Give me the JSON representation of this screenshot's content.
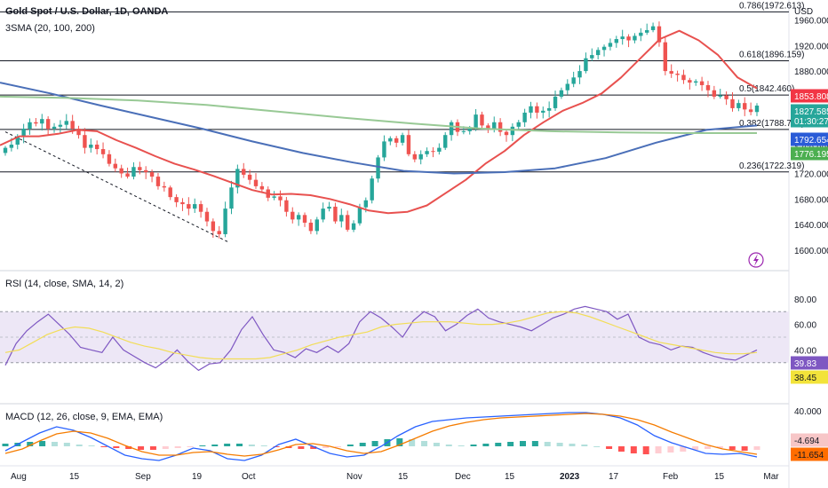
{
  "header": {
    "symbol_title": "Gold Spot / U.S. Dollar, 1D, OANDA",
    "sma_label": "3SMA (20, 100, 200)",
    "currency": "USD"
  },
  "colors": {
    "up": "#26a69a",
    "down": "#ef5350",
    "sma20": "#e8514f",
    "sma100": "#4a6fb8",
    "sma200": "#98c995",
    "rsi": "#7e57c2",
    "rsi_ma": "#f2dd57",
    "rsi_band": "#ede7f6",
    "macd": "#2962ff",
    "signal": "#f57c00",
    "fib": "#131722"
  },
  "chart_data": [
    {
      "type": "candlestick",
      "title": "Gold Spot / U.S. Dollar, 1D, OANDA",
      "ylim": [
        1575,
        1980
      ],
      "y_ticks": [
        1600,
        1640,
        1680,
        1720,
        1760,
        1800,
        1840,
        1880,
        1920,
        1960
      ],
      "y_tick_labels": [
        "1600.000",
        "1640.000",
        "1680.000",
        "1720.000",
        "1760.000",
        "1800.000",
        "1840.000",
        "1880.000",
        "1920.000",
        "1960.000"
      ],
      "x_tick_labels": [
        "Aug",
        "15",
        "Sep",
        "19",
        "Oct",
        "Nov",
        "15",
        "Dec",
        "15",
        "2023",
        "17",
        "Feb",
        "15",
        "Mar"
      ],
      "close_series": [
        1760,
        1765,
        1778,
        1790,
        1800,
        1798,
        1805,
        1790,
        1793,
        1796,
        1802,
        1790,
        1780,
        1760,
        1765,
        1758,
        1750,
        1735,
        1728,
        1720,
        1715,
        1730,
        1725,
        1722,
        1715,
        1700,
        1698,
        1683,
        1675,
        1672,
        1665,
        1672,
        1660,
        1645,
        1630,
        1625,
        1665,
        1698,
        1727,
        1718,
        1710,
        1700,
        1695,
        1682,
        1684,
        1678,
        1660,
        1648,
        1655,
        1643,
        1630,
        1648,
        1665,
        1668,
        1645,
        1655,
        1632,
        1642,
        1667,
        1678,
        1712,
        1745,
        1770,
        1775,
        1768,
        1780,
        1750,
        1742,
        1750,
        1755,
        1754,
        1760,
        1780,
        1800,
        1785,
        1786,
        1790,
        1812,
        1795,
        1790,
        1800,
        1785,
        1780,
        1793,
        1800,
        1815,
        1825,
        1815,
        1818,
        1822,
        1840,
        1850,
        1860,
        1870,
        1880,
        1900,
        1905,
        1913,
        1918,
        1924,
        1930,
        1934,
        1928,
        1935,
        1940,
        1944,
        1950,
        1925,
        1880,
        1876,
        1874,
        1866,
        1862,
        1864,
        1858,
        1850,
        1840,
        1842,
        1836,
        1822,
        1830,
        1820,
        1816,
        1826
      ],
      "sma": [
        {
          "period": 20,
          "values": [
            1764,
            1778,
            1778,
            1782,
            1788,
            1786,
            1772,
            1760,
            1747,
            1735,
            1726,
            1716,
            1705,
            1694,
            1687,
            1688,
            1686,
            1680,
            1672,
            1662,
            1658,
            1660,
            1670,
            1690,
            1710,
            1735,
            1755,
            1780,
            1800,
            1818,
            1830,
            1845,
            1870,
            1900,
            1930,
            1943,
            1928,
            1905,
            1870,
            1853
          ]
        },
        {
          "period": 100,
          "values": [
            1862,
            1845,
            1826,
            1808,
            1790,
            1770,
            1752,
            1737,
            1724,
            1720,
            1722,
            1728,
            1744,
            1768,
            1788,
            1795
          ]
        },
        {
          "period": 200,
          "values": [
            1840,
            1838,
            1834,
            1827,
            1817,
            1807,
            1798,
            1790,
            1786,
            1784,
            1783,
            1783
          ]
        }
      ],
      "fib_levels": [
        {
          "ratio": "0.786",
          "price": 1972.613,
          "label": "0.786(1972.613)"
        },
        {
          "ratio": "0.618",
          "price": 1896.159,
          "label": "0.618(1896.159)"
        },
        {
          "ratio": "0.5",
          "price": 1842.46,
          "label": "0.5(1842.460)"
        },
        {
          "ratio": "0.382",
          "price": 1788.761,
          "label": "0.382(1788.761)"
        },
        {
          "ratio": "0.236",
          "price": 1722.319,
          "label": "0.236(1722.319)"
        }
      ],
      "trendline": {
        "from": 1785,
        "to": 1612,
        "style": "dashed"
      },
      "price_tags": [
        {
          "value": "1853.808",
          "color": "#f23645"
        },
        {
          "value": "1827.585",
          "color": "#26a69a",
          "sub": "01:30:27"
        },
        {
          "value": "1792.654",
          "color": "#2a5bd7"
        },
        {
          "value": "1776.195",
          "color": "#4caf50"
        }
      ]
    },
    {
      "type": "line",
      "title": "RSI (14, close, SMA, 14, 2)",
      "ylim": [
        0,
        100
      ],
      "y_ticks": [
        40,
        60,
        80
      ],
      "y_tick_labels": [
        "40.00",
        "60.00",
        "80.00"
      ],
      "band": [
        30,
        70
      ],
      "series": [
        {
          "name": "RSI",
          "values": [
            28,
            45,
            55,
            62,
            68,
            60,
            52,
            42,
            40,
            38,
            50,
            40,
            35,
            30,
            26,
            32,
            40,
            31,
            24,
            29,
            30,
            40,
            56,
            66,
            52,
            40,
            38,
            34,
            41,
            38,
            43,
            38,
            45,
            62,
            70,
            65,
            58,
            50,
            63,
            70,
            66,
            55,
            60,
            67,
            72,
            65,
            62,
            60,
            58,
            55,
            60,
            65,
            68,
            72,
            74,
            72,
            70,
            64,
            68,
            50,
            46,
            44,
            40,
            43,
            42,
            38,
            35,
            33,
            32,
            36,
            40
          ]
        },
        {
          "name": "RSI-based MA",
          "values": [
            38,
            40,
            46,
            52,
            56,
            58,
            57,
            54,
            50,
            46,
            43,
            41,
            38,
            36,
            34,
            33,
            33,
            33,
            33,
            34,
            37,
            40,
            44,
            47,
            50,
            52,
            54,
            58,
            60,
            61,
            62,
            62,
            62,
            61,
            60,
            60,
            61,
            63,
            66,
            69,
            70,
            69,
            66,
            62,
            58,
            54,
            50,
            46,
            44,
            42,
            40,
            38,
            37,
            37,
            38
          ]
        }
      ],
      "tags": [
        {
          "value": "39.83",
          "color": "#7e57c2"
        },
        {
          "value": "38.45",
          "color": "#f2e33a"
        }
      ]
    },
    {
      "type": "bar",
      "title": "MACD (12, 26, close, 9, EMA, EMA)",
      "ylim": [
        -20,
        45
      ],
      "y_ticks": [
        40
      ],
      "y_tick_labels": [
        "40.000"
      ],
      "series": [
        {
          "name": "Histogram",
          "values": [
            3,
            4,
            5,
            6,
            5,
            4,
            2,
            1,
            -1,
            -2,
            -3,
            -4,
            -4,
            -3,
            -2,
            -1,
            1,
            2,
            3,
            3,
            2,
            1,
            -1,
            -2,
            -3,
            -3,
            -2,
            -1,
            2,
            4,
            6,
            8,
            9,
            8,
            6,
            4,
            2,
            1,
            2,
            3,
            4,
            5,
            6,
            6,
            5,
            4,
            3,
            2,
            0,
            -3,
            -6,
            -8,
            -9,
            -8,
            -7,
            -6,
            -4,
            -3,
            -2,
            -4,
            -5,
            -4
          ]
        },
        {
          "name": "MACD",
          "values": [
            -5,
            5,
            15,
            22,
            18,
            10,
            0,
            -10,
            -14,
            -16,
            -10,
            -2,
            -5,
            -14,
            -16,
            -10,
            2,
            8,
            0,
            -8,
            -12,
            -10,
            0,
            12,
            22,
            28,
            30,
            32,
            33,
            34,
            35,
            36,
            37,
            38,
            38,
            36,
            32,
            24,
            12,
            4,
            -2,
            -8,
            -9,
            -8,
            -12
          ]
        },
        {
          "name": "Signal",
          "values": [
            -8,
            -3,
            6,
            14,
            17,
            15,
            9,
            1,
            -6,
            -10,
            -10,
            -7,
            -6,
            -9,
            -11,
            -9,
            -4,
            2,
            3,
            0,
            -5,
            -8,
            -6,
            1,
            9,
            17,
            23,
            27,
            30,
            32,
            33,
            34,
            35,
            36,
            37,
            36,
            34,
            30,
            24,
            16,
            9,
            2,
            -3,
            -6,
            -9
          ]
        }
      ],
      "tags": [
        {
          "value": "-4.694",
          "color": "#f7c6c7"
        },
        {
          "value": "-11.654",
          "color": "#ff6d00"
        }
      ]
    }
  ]
}
